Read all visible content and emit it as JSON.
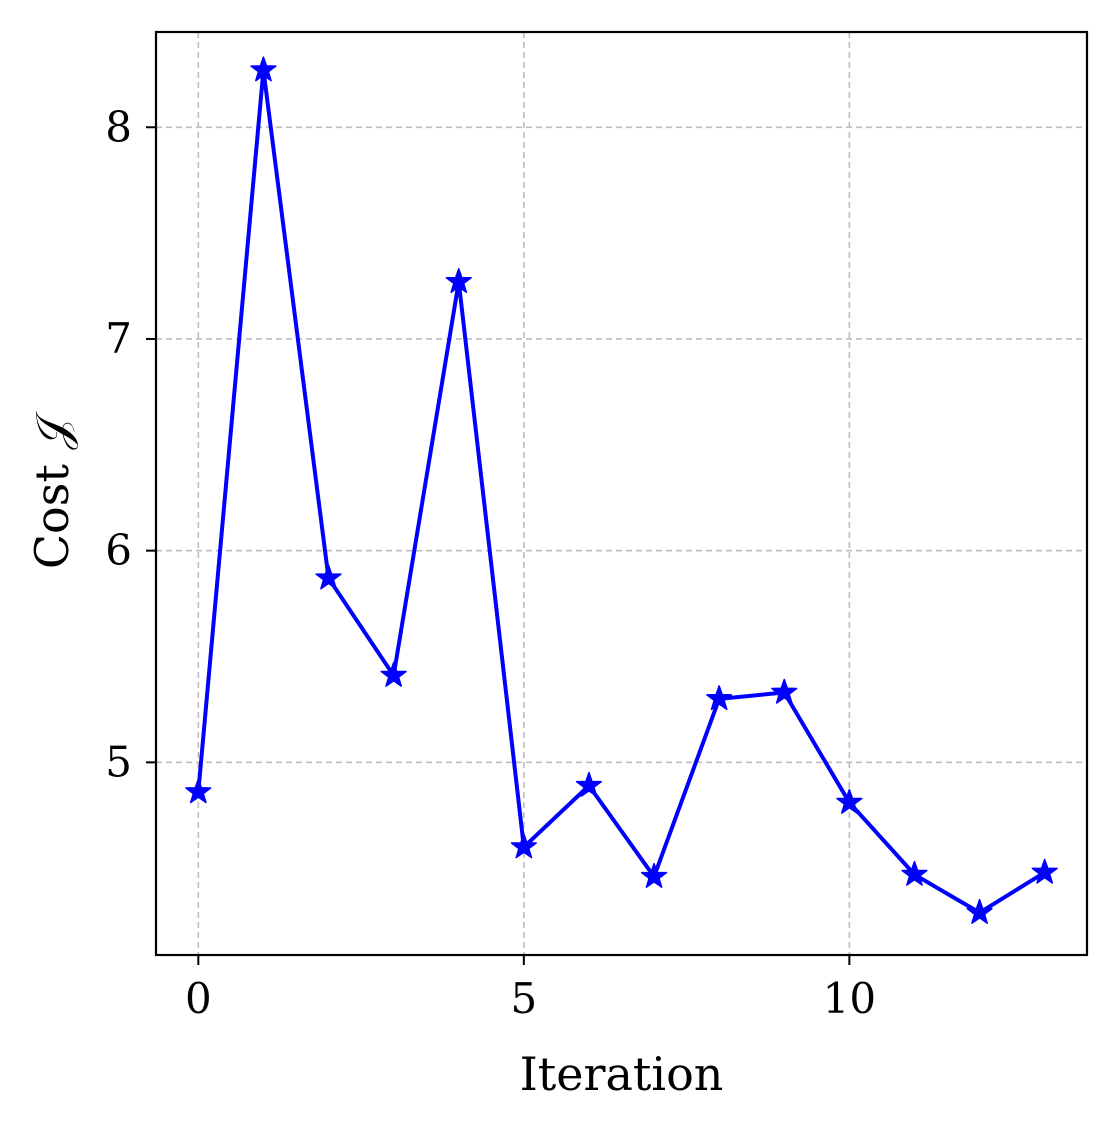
{
  "chart_data": {
    "type": "line",
    "xlabel": "Iteration",
    "ylabel": "Cost 𝒥",
    "xlim": [
      -0.65,
      13.65
    ],
    "ylim": [
      4.09,
      8.45
    ],
    "xticks": [
      0,
      5,
      10
    ],
    "yticks": [
      5,
      6,
      7,
      8
    ],
    "grid": true,
    "series": [
      {
        "color": "#0000ff",
        "marker": "star",
        "x": [
          0,
          1,
          2,
          3,
          4,
          5,
          6,
          7,
          8,
          9,
          10,
          11,
          12,
          13
        ],
        "values": [
          4.86,
          8.27,
          5.87,
          5.41,
          7.27,
          4.6,
          4.89,
          4.46,
          5.3,
          5.33,
          4.81,
          4.47,
          4.29,
          4.48
        ]
      }
    ]
  }
}
